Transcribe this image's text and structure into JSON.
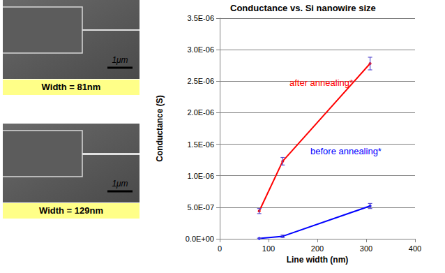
{
  "panels": [
    {
      "label": "Width = 81nm",
      "scale_bar": "1μm"
    },
    {
      "label": "Width = 129nm",
      "scale_bar": "1μm"
    }
  ],
  "chart_data": {
    "type": "line",
    "title": "Conductance vs. Si nanowire size",
    "x_label": "Line width (nm)",
    "y_label": "Conductance (S)",
    "x": [
      81,
      129,
      308
    ],
    "series": [
      {
        "name": "after annealing*",
        "color": "#ff0000",
        "values": [
          4.4e-07,
          1.23e-06,
          2.78e-06
        ],
        "errors": [
          4e-08,
          6e-08,
          1e-07
        ]
      },
      {
        "name": "before annealing*",
        "color": "#0000ff",
        "values": [
          5e-09,
          4e-08,
          5.2e-07
        ],
        "errors": [
          5e-09,
          2e-08,
          4e-08
        ]
      }
    ],
    "xlim": [
      0,
      400
    ],
    "xticks": [
      0,
      100,
      200,
      300,
      400
    ],
    "ylim": [
      0,
      3.5e-06
    ],
    "yticks": [
      {
        "value": 0,
        "label": "0.0E+00"
      },
      {
        "value": 5e-07,
        "label": "5.0E-07"
      },
      {
        "value": 1e-06,
        "label": "1.0E-06"
      },
      {
        "value": 1.5e-06,
        "label": "1.5E-06"
      },
      {
        "value": 2e-06,
        "label": "2.0E-06"
      },
      {
        "value": 2.5e-06,
        "label": "2.5E-06"
      },
      {
        "value": 3e-06,
        "label": "3.0E-06"
      },
      {
        "value": 3.5e-06,
        "label": "3.5E-06"
      }
    ],
    "grid": true
  }
}
